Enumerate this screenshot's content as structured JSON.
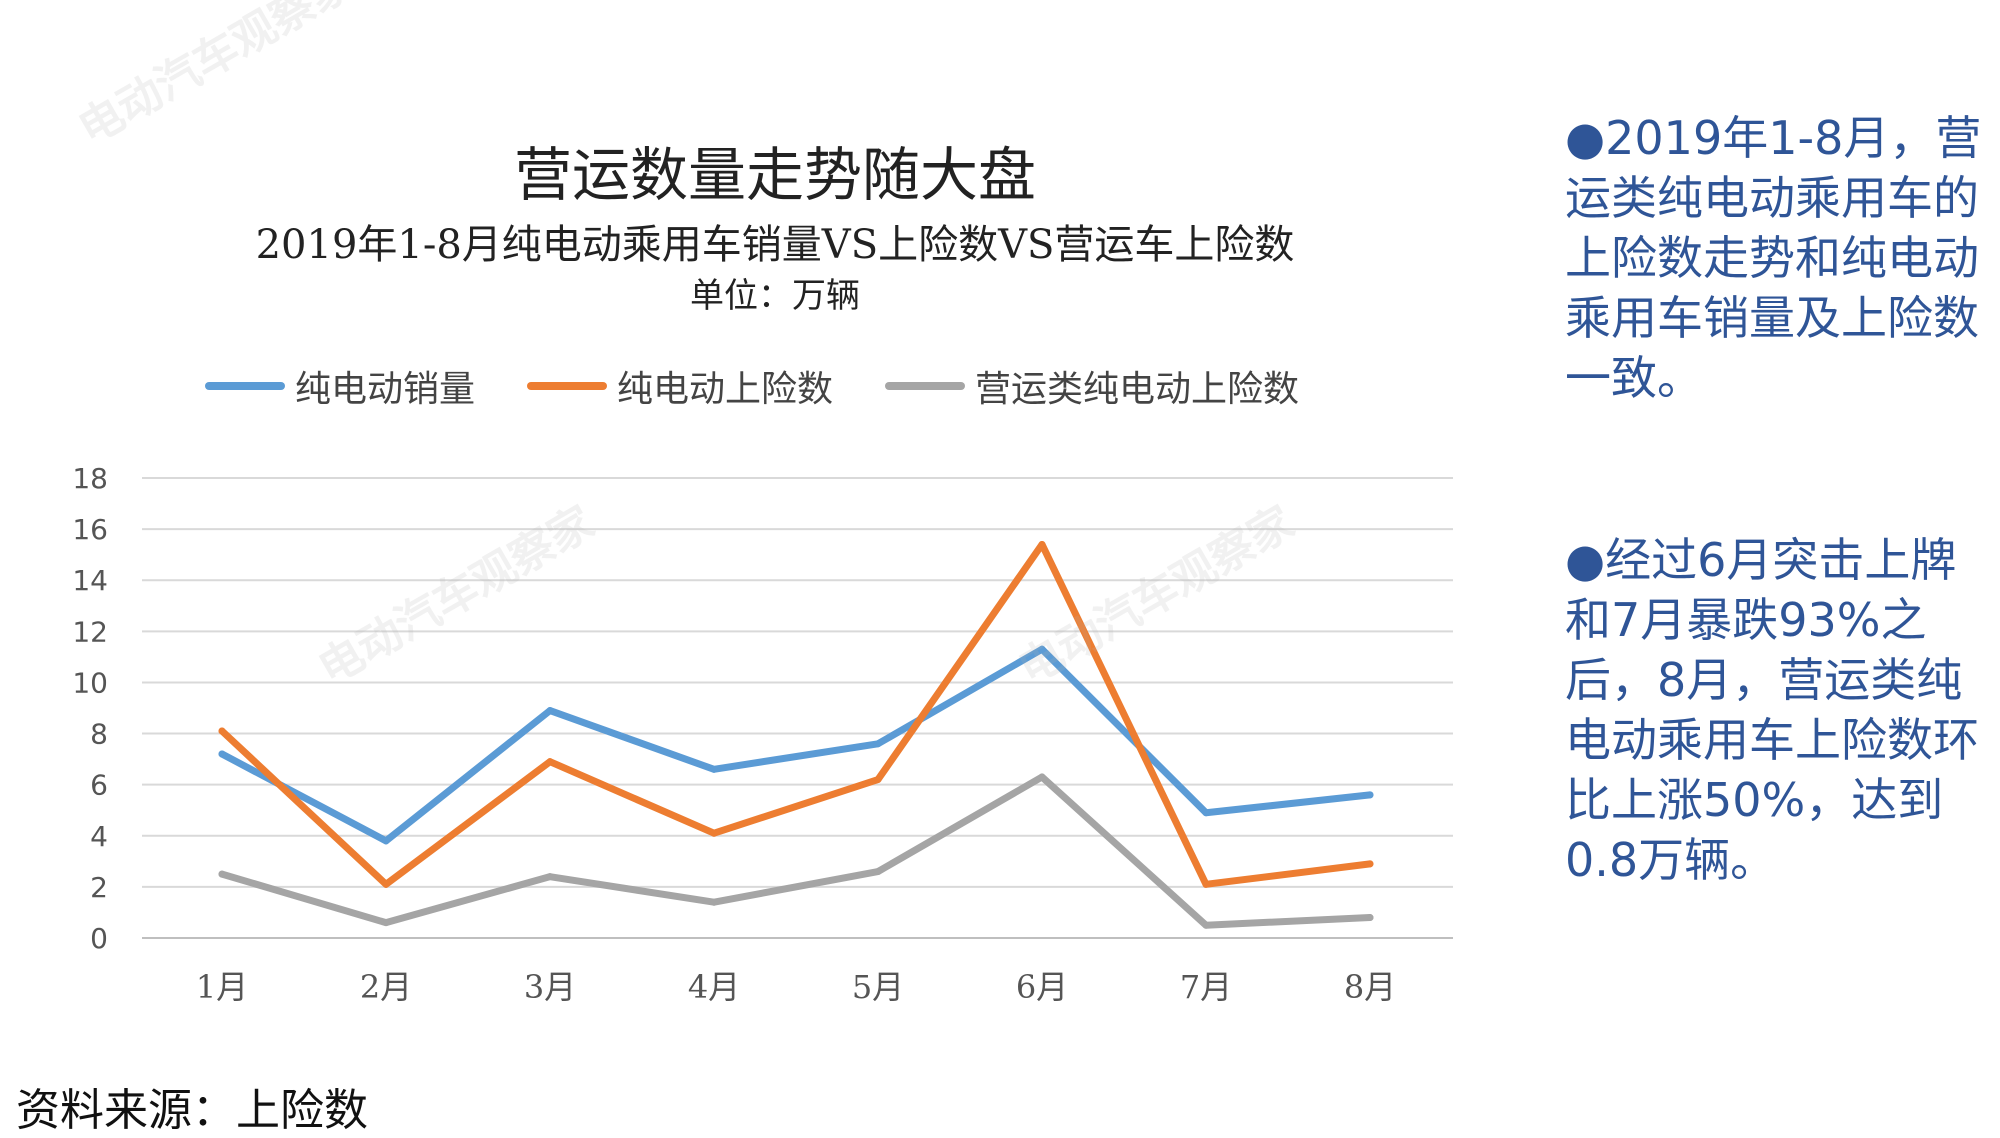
{
  "chart_data": {
    "type": "line",
    "title": "营运数量走势随大盘",
    "subtitle": "2019年1-8月纯电动乘用车销量VS上险数VS营运车上险数",
    "unit": "单位：万辆",
    "categories": [
      "1月",
      "2月",
      "3月",
      "4月",
      "5月",
      "6月",
      "7月",
      "8月"
    ],
    "ylim": [
      0,
      18
    ],
    "yticks": [
      "0",
      "2",
      "4",
      "6",
      "8",
      "10",
      "12",
      "14",
      "16",
      "18"
    ],
    "grid": true,
    "legend_position": "top",
    "series": [
      {
        "name": "纯电动销量",
        "color": "#5b9bd5",
        "values": [
          7.2,
          3.8,
          8.9,
          6.6,
          7.6,
          11.3,
          4.9,
          5.6
        ]
      },
      {
        "name": "纯电动上险数",
        "color": "#ed7d31",
        "values": [
          8.1,
          2.1,
          6.9,
          4.1,
          6.2,
          15.4,
          2.1,
          2.9
        ]
      },
      {
        "name": "营运类纯电动上险数",
        "color": "#a5a5a5",
        "values": [
          2.5,
          0.6,
          2.4,
          1.4,
          2.6,
          6.3,
          0.5,
          0.8
        ]
      }
    ]
  },
  "side_text": {
    "para1": "●2019年1-8月，营运类纯电动乘用车的上险数走势和纯电动乘用车销量及上险数一致。",
    "para2": "●经过6月突击上牌和7月暴跌93%之后，8月，营运类纯电动乘用车上险数环比上涨50%，达到0.8万辆。"
  },
  "source": "资料来源：上险数",
  "watermark": "电动汽车观察家"
}
